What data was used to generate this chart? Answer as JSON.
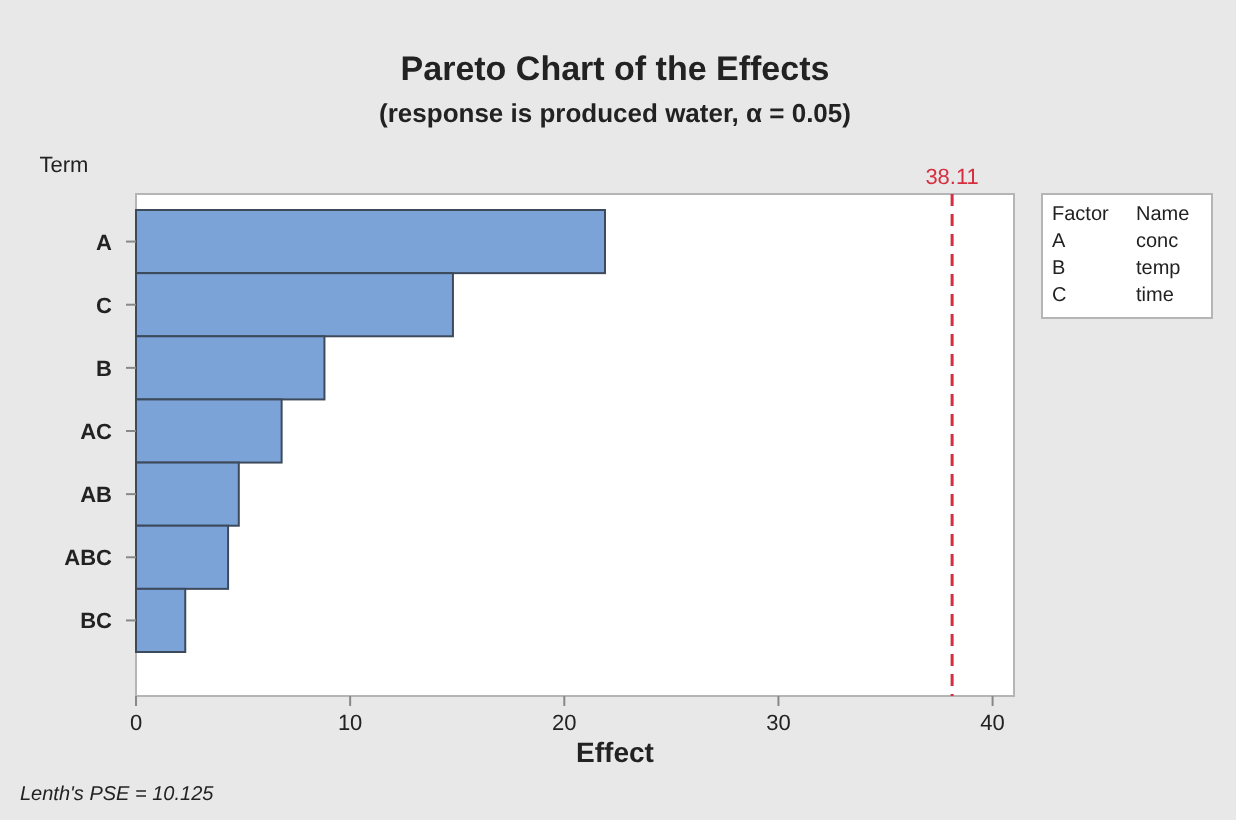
{
  "chart_data": {
    "type": "bar",
    "orientation": "horizontal",
    "title": "Pareto Chart of the Effects",
    "subtitle": "(response is produced water, α = 0.05)",
    "xlabel": "Effect",
    "ylabel": "Term",
    "categories": [
      "A",
      "C",
      "B",
      "AC",
      "AB",
      "ABC",
      "BC"
    ],
    "values": [
      21.9,
      14.8,
      8.8,
      6.8,
      4.8,
      4.3,
      2.3
    ],
    "color": "#7ba3d8",
    "xlim": [
      0,
      41
    ],
    "xticks": [
      0,
      10,
      20,
      30,
      40
    ],
    "grid": false,
    "ref_lines": [
      {
        "axis": "x",
        "value": 38.11,
        "label": "38.11",
        "color": "#d62e3e",
        "line_style": "dashed"
      }
    ],
    "annotations": [
      "Factor",
      "Name",
      "A",
      "conc",
      "B",
      "temp",
      "C",
      "time",
      "Lenth's PSE = 10.125"
    ]
  }
}
